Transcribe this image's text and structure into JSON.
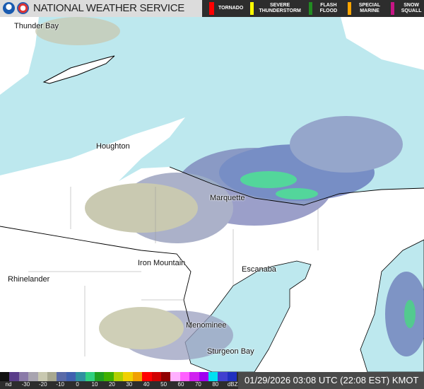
{
  "header": {
    "title": "NATIONAL WEATHER SERVICE",
    "warnings": [
      {
        "label": "TORNADO",
        "color": "#ff0000"
      },
      {
        "label": "SEVERE THUNDERSTORM",
        "color": "#ffff00"
      },
      {
        "label": "FLASH FLOOD",
        "color": "#228b22"
      },
      {
        "label": "SPECIAL MARINE",
        "color": "#ffa500"
      },
      {
        "label": "SNOW SQUALL",
        "color": "#c71585"
      }
    ]
  },
  "map": {
    "cities": [
      {
        "name": "Thunder Bay"
      },
      {
        "name": "Houghton"
      },
      {
        "name": "Marquette"
      },
      {
        "name": "Iron Mountain"
      },
      {
        "name": "Escanaba"
      },
      {
        "name": "Rhinelander"
      },
      {
        "name": "Menominee"
      },
      {
        "name": "Sturgeon Bay"
      }
    ],
    "colors": {
      "water": "#bde8ee",
      "land": "#ffffff"
    }
  },
  "legend": {
    "ticks": [
      "nd",
      "-30",
      "-20",
      "-10",
      "0",
      "10",
      "20",
      "30",
      "40",
      "50",
      "60",
      "70",
      "80",
      "dBZ"
    ],
    "colors": [
      "#111111",
      "#5a3d8a",
      "#8a7aa8",
      "#a8a4b0",
      "#c8c8b0",
      "#a8a890",
      "#5a6aa8",
      "#4060b0",
      "#3090a0",
      "#30d080",
      "#20a020",
      "#40b000",
      "#b0d000",
      "#f0d000",
      "#f0a000",
      "#ff0000",
      "#d00000",
      "#900000",
      "#ffb0ff",
      "#ff60ff",
      "#d020f0",
      "#a000f0",
      "#00e0f0",
      "#4040d0",
      "#2030c0"
    ]
  },
  "status": {
    "timestamp": "01/29/2026 03:08 UTC (22:08 EST) KMOT"
  }
}
